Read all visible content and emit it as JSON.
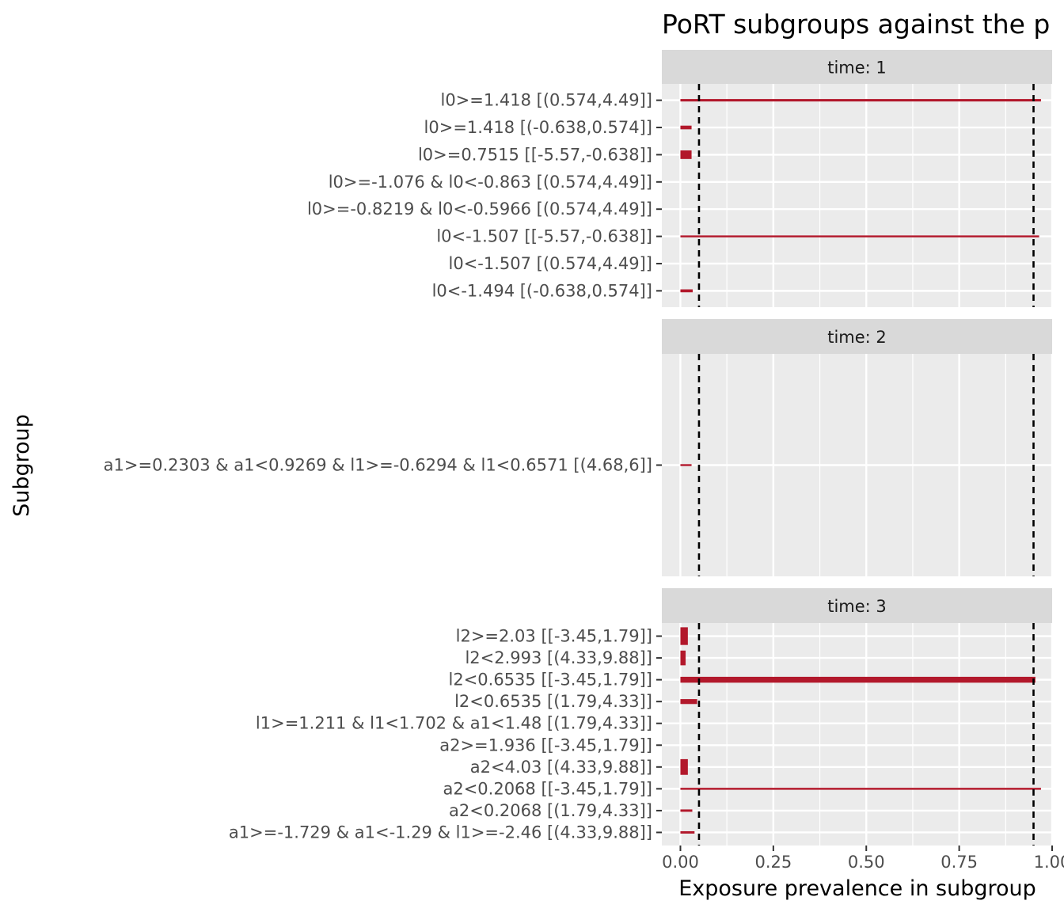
{
  "chart_data": {
    "type": "bar",
    "orientation": "horizontal",
    "title": "PoRT subgroups against the p",
    "xlabel": "Exposure prevalence in subgroup",
    "ylabel": "Subgroup",
    "xlim": [
      -0.05,
      1.0
    ],
    "x_ticks": [
      0.0,
      0.25,
      0.5,
      0.75,
      1.0
    ],
    "x_tick_labels": [
      "0.00",
      "0.25",
      "0.50",
      "0.75",
      "1.00"
    ],
    "reference_lines": [
      0.05,
      0.95
    ],
    "grid": true,
    "bar_color": "#B2182B",
    "panel_background": "#EBEBEB",
    "strip_background": "#D9D9D9",
    "panels": [
      {
        "strip": "time: 1",
        "subgroups": [
          {
            "label": "l0>=1.418 [(0.574,4.49]]",
            "value": 0.97,
            "weight": 0.1
          },
          {
            "label": "l0>=1.418 [(-0.638,0.574]]",
            "value": 0.03,
            "weight": 0.15
          },
          {
            "label": "l0>=0.7515 [[-5.57,-0.638]]",
            "value": 0.03,
            "weight": 0.35
          },
          {
            "label": "l0>=-1.076 & l0<-0.863 [(0.574,4.49]]",
            "value": 0.0,
            "weight": 0.05
          },
          {
            "label": "l0>=-0.8219 & l0<-0.5966 [(0.574,4.49]]",
            "value": 0.0,
            "weight": 0.05
          },
          {
            "label": "l0<-1.507 [[-5.57,-0.638]]",
            "value": 0.965,
            "weight": 0.07
          },
          {
            "label": "l0<-1.507 [(0.574,4.49]]",
            "value": 0.0,
            "weight": 0.05
          },
          {
            "label": "l0<-1.494 [(-0.638,0.574]]",
            "value": 0.033,
            "weight": 0.12
          }
        ]
      },
      {
        "strip": "time: 2",
        "subgroups": [
          {
            "label": "a1>=0.2303 & a1<0.9269 & l1>=-0.6294 & l1<0.6571 [(4.68,6]]",
            "value": 0.03,
            "weight": 0.07
          }
        ]
      },
      {
        "strip": "time: 3",
        "subgroups": [
          {
            "label": "l2>=2.03 [[-3.45,1.79]]",
            "value": 0.02,
            "weight": 0.9
          },
          {
            "label": "l2<2.993 [(4.33,9.88]]",
            "value": 0.014,
            "weight": 0.75
          },
          {
            "label": "l2<0.6535 [[-3.45,1.79]]",
            "value": 0.955,
            "weight": 0.3
          },
          {
            "label": "l2<0.6535 [(1.79,4.33]]",
            "value": 0.045,
            "weight": 0.25
          },
          {
            "label": "l1>=1.211 & l1<1.702 & a1<1.48 [(1.79,4.33]]",
            "value": 0.0,
            "weight": 0.05
          },
          {
            "label": "a2>=1.936 [[-3.45,1.79]]",
            "value": 0.0,
            "weight": 0.05
          },
          {
            "label": "a2<4.03 [(4.33,9.88]]",
            "value": 0.02,
            "weight": 0.8
          },
          {
            "label": "a2<0.2068 [[-3.45,1.79]]",
            "value": 0.97,
            "weight": 0.1
          },
          {
            "label": "a2<0.2068 [(1.79,4.33]]",
            "value": 0.032,
            "weight": 0.12
          },
          {
            "label": "a1>=-1.729 & a1<-1.29 & l1>=-2.46 [(4.33,9.88]]",
            "value": 0.038,
            "weight": 0.12
          }
        ]
      }
    ]
  }
}
